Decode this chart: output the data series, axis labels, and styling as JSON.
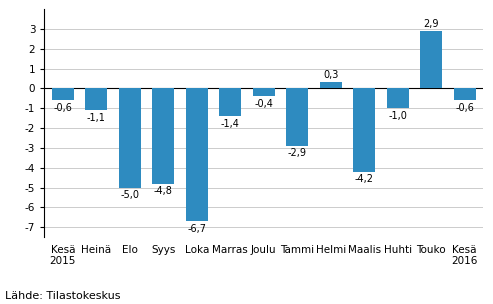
{
  "categories": [
    "Kesä\n2015",
    "Heinä",
    "Elo",
    "Syys",
    "Loka",
    "Marras",
    "Joulu",
    "Tammi",
    "Helmi",
    "Maalis",
    "Huhti",
    "Touko",
    "Kesä\n2016"
  ],
  "values": [
    -0.6,
    -1.1,
    -5.0,
    -4.8,
    -6.7,
    -1.4,
    -0.4,
    -2.9,
    0.3,
    -4.2,
    -1.0,
    2.9,
    -0.6
  ],
  "bar_color": "#2E8BC0",
  "ylim": [
    -7.5,
    4.0
  ],
  "yticks": [
    -7,
    -6,
    -5,
    -4,
    -3,
    -2,
    -1,
    0,
    1,
    2,
    3
  ],
  "source": "Lähde: Tilastokeskus",
  "background_color": "#ffffff",
  "grid_color": "#cccccc",
  "label_fontsize": 7.0,
  "tick_fontsize": 7.5,
  "source_fontsize": 8.0,
  "bar_width": 0.65
}
